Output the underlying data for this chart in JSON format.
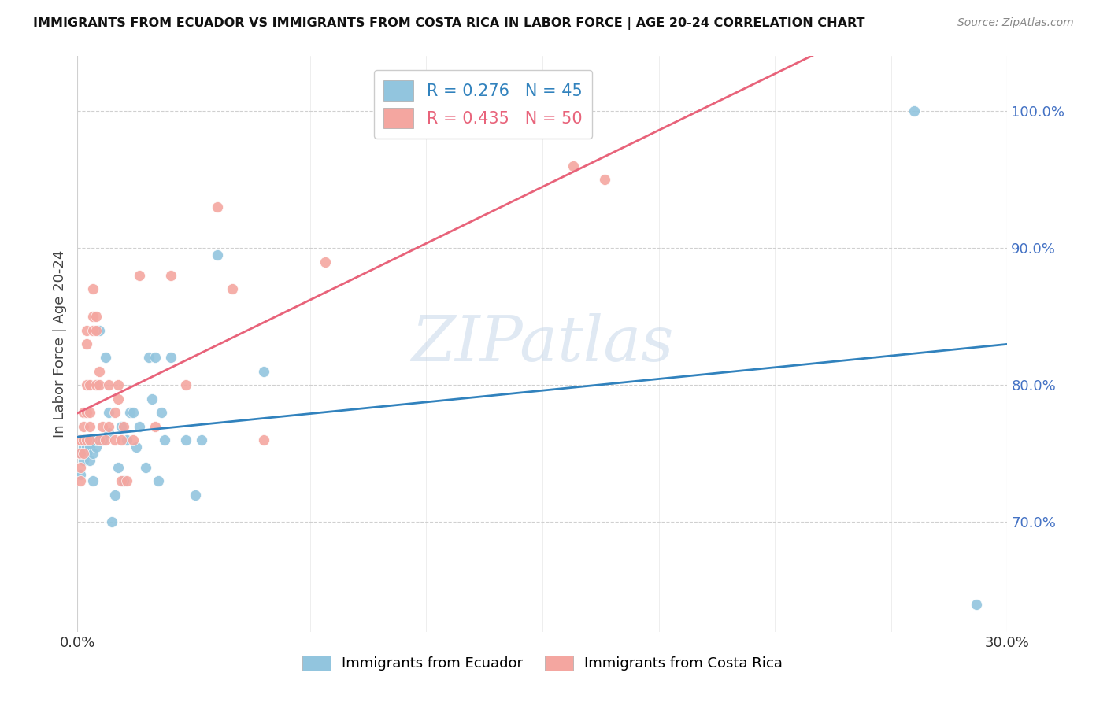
{
  "title": "IMMIGRANTS FROM ECUADOR VS IMMIGRANTS FROM COSTA RICA IN LABOR FORCE | AGE 20-24 CORRELATION CHART",
  "source": "Source: ZipAtlas.com",
  "ylabel": "In Labor Force | Age 20-24",
  "xlim": [
    0.0,
    0.3
  ],
  "ylim": [
    0.62,
    1.04
  ],
  "ecuador_color": "#92c5de",
  "costa_rica_color": "#f4a6a0",
  "ecuador_R": 0.276,
  "ecuador_N": 45,
  "costa_rica_R": 0.435,
  "costa_rica_N": 50,
  "ecuador_line_color": "#3182bd",
  "costa_rica_line_color": "#e8637a",
  "ecuador_legend_color": "#3182bd",
  "costa_rica_legend_color": "#e8637a",
  "ecuador_x": [
    0.001,
    0.001,
    0.001,
    0.002,
    0.002,
    0.002,
    0.003,
    0.003,
    0.004,
    0.004,
    0.005,
    0.005,
    0.006,
    0.006,
    0.007,
    0.007,
    0.008,
    0.009,
    0.01,
    0.01,
    0.011,
    0.012,
    0.013,
    0.014,
    0.015,
    0.016,
    0.017,
    0.018,
    0.019,
    0.02,
    0.022,
    0.023,
    0.024,
    0.025,
    0.026,
    0.027,
    0.028,
    0.03,
    0.035,
    0.038,
    0.04,
    0.045,
    0.06,
    0.27,
    0.29
  ],
  "ecuador_y": [
    0.75,
    0.735,
    0.76,
    0.76,
    0.755,
    0.745,
    0.755,
    0.75,
    0.745,
    0.755,
    0.73,
    0.75,
    0.755,
    0.76,
    0.76,
    0.84,
    0.76,
    0.82,
    0.78,
    0.765,
    0.7,
    0.72,
    0.74,
    0.77,
    0.73,
    0.76,
    0.78,
    0.78,
    0.755,
    0.77,
    0.74,
    0.82,
    0.79,
    0.82,
    0.73,
    0.78,
    0.76,
    0.82,
    0.76,
    0.72,
    0.76,
    0.895,
    0.81,
    1.0,
    0.64
  ],
  "costa_rica_x": [
    0.001,
    0.001,
    0.001,
    0.001,
    0.001,
    0.002,
    0.002,
    0.002,
    0.002,
    0.003,
    0.003,
    0.003,
    0.003,
    0.003,
    0.004,
    0.004,
    0.004,
    0.004,
    0.005,
    0.005,
    0.005,
    0.006,
    0.006,
    0.006,
    0.007,
    0.007,
    0.007,
    0.008,
    0.009,
    0.01,
    0.01,
    0.012,
    0.013,
    0.013,
    0.014,
    0.015,
    0.016,
    0.018,
    0.02,
    0.025,
    0.03,
    0.035,
    0.045,
    0.16,
    0.17,
    0.05,
    0.06,
    0.08,
    0.012,
    0.014
  ],
  "costa_rica_y": [
    0.76,
    0.76,
    0.75,
    0.74,
    0.73,
    0.78,
    0.77,
    0.76,
    0.75,
    0.84,
    0.83,
    0.8,
    0.78,
    0.76,
    0.8,
    0.78,
    0.77,
    0.76,
    0.87,
    0.85,
    0.84,
    0.85,
    0.84,
    0.8,
    0.81,
    0.8,
    0.76,
    0.77,
    0.76,
    0.8,
    0.77,
    0.76,
    0.8,
    0.79,
    0.73,
    0.77,
    0.73,
    0.76,
    0.88,
    0.77,
    0.88,
    0.8,
    0.93,
    0.96,
    0.95,
    0.87,
    0.76,
    0.89,
    0.78,
    0.76
  ],
  "watermark": "ZIPatlas",
  "background_color": "#ffffff",
  "grid_color": "#d0d0d0"
}
